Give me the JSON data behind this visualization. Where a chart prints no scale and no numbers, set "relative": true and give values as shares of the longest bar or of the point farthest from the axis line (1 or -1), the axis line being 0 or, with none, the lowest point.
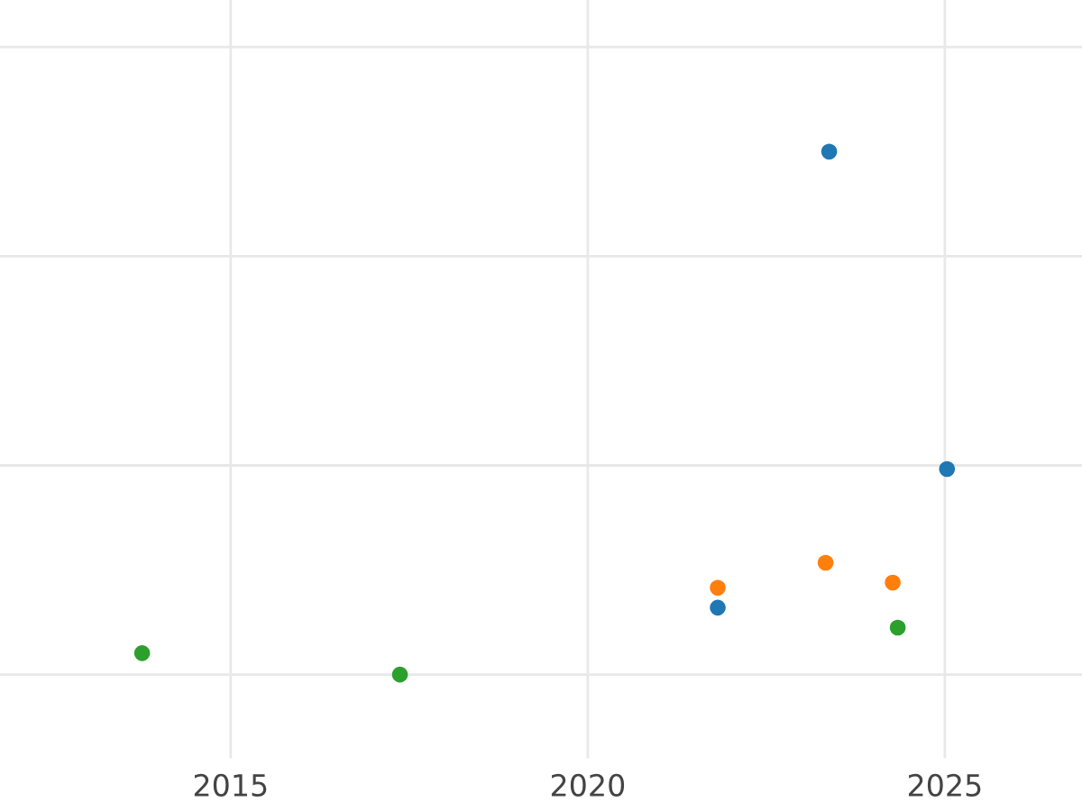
{
  "chart_data": {
    "type": "scatter",
    "relative": true,
    "xlim": [
      2011.77,
      2026.92
    ],
    "xticks": [
      2015,
      2020,
      2025
    ],
    "grid": true,
    "marker": "circle",
    "tick_labels": "x",
    "series": [
      {
        "color": "#1f77b4",
        "x": [
          2023.38,
          2025.03,
          2021.82
        ],
        "values": [
          1.0,
          0.393,
          0.128
        ]
      },
      {
        "color": "#ff7f0e",
        "x": [
          2021.82,
          2023.33,
          2024.27
        ],
        "values": [
          0.166,
          0.214,
          0.176
        ]
      },
      {
        "color": "#2ca02c",
        "x": [
          2013.76,
          2017.37,
          2024.34
        ],
        "values": [
          0.041,
          0,
          0.09
        ]
      }
    ]
  }
}
